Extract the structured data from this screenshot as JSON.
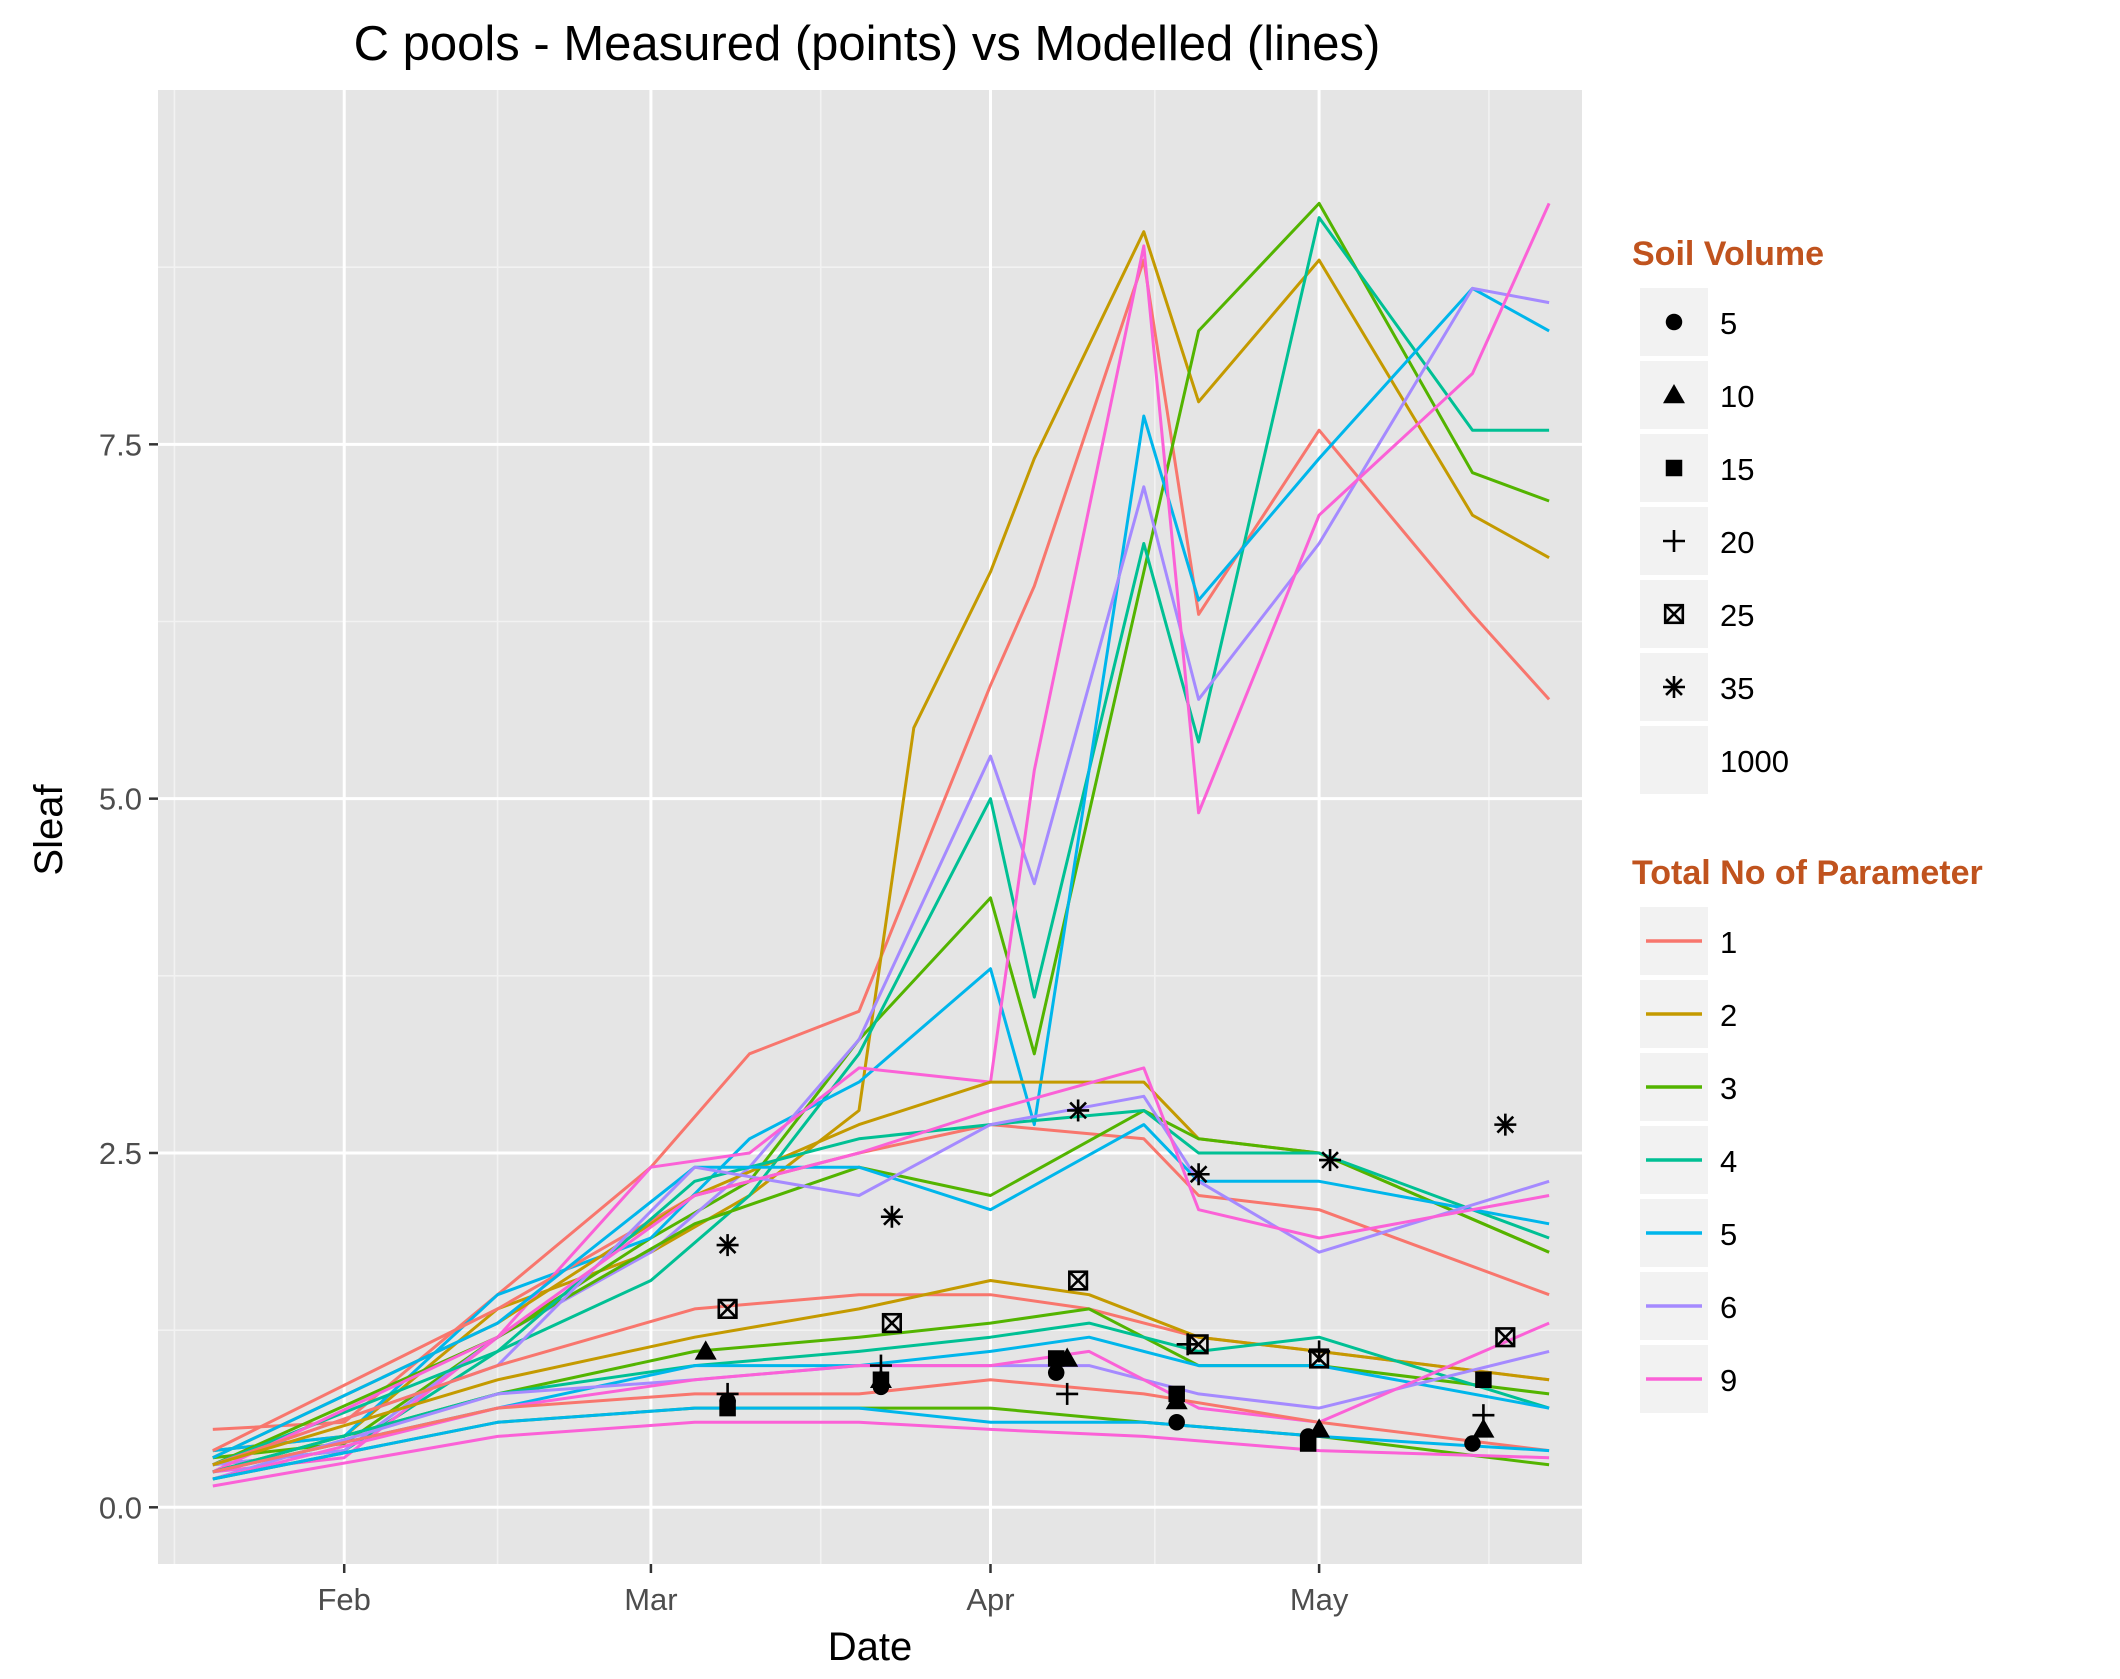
{
  "chart_data": {
    "type": "line",
    "title": "C pools - Measured (points) vs Modelled (lines)",
    "xlabel": "Date",
    "ylabel": "Sleaf",
    "x_ticks": [
      "Feb",
      "Mar",
      "Apr",
      "May"
    ],
    "y_ticks": [
      "0.0",
      "2.5",
      "5.0",
      "7.5"
    ],
    "xlim": [
      "2013-01-15",
      "2013-05-25"
    ],
    "ylim": [
      -0.4,
      10.0
    ],
    "grid": true,
    "legend_position": "right",
    "colors": {
      "panel_bg": "#e5e5e5",
      "grid_major": "#ffffff",
      "legend_title": "#c0531e"
    },
    "legend_shape": {
      "title": "Soil Volume",
      "items": [
        {
          "label": "5",
          "shape": "circle"
        },
        {
          "label": "10",
          "shape": "triangle"
        },
        {
          "label": "15",
          "shape": "square"
        },
        {
          "label": "20",
          "shape": "plus"
        },
        {
          "label": "25",
          "shape": "boxed-x"
        },
        {
          "label": "35",
          "shape": "asterisk"
        },
        {
          "label": "1000",
          "shape": "none"
        }
      ]
    },
    "legend_color": {
      "title": "Total No of Parameter",
      "items": [
        {
          "label": "1",
          "color": "#f8766d"
        },
        {
          "label": "2",
          "color": "#c49a00"
        },
        {
          "label": "3",
          "color": "#53b400"
        },
        {
          "label": "4",
          "color": "#00c094"
        },
        {
          "label": "5",
          "color": "#00b6eb"
        },
        {
          "label": "6",
          "color": "#a58aff"
        },
        {
          "label": "9",
          "color": "#fb61d7"
        }
      ]
    },
    "series": [
      {
        "group": "1",
        "color": "#f8766d",
        "x": [
          "2013-01-20",
          "2013-02-01",
          "2013-02-15",
          "2013-03-01",
          "2013-03-10",
          "2013-03-20",
          "2013-04-01",
          "2013-04-05",
          "2013-04-15",
          "2013-04-20",
          "2013-05-01",
          "2013-05-15",
          "2013-05-22"
        ],
        "y": [
          0.55,
          0.6,
          1.5,
          2.4,
          3.2,
          3.5,
          5.8,
          6.5,
          8.8,
          6.3,
          7.6,
          6.3,
          5.7
        ]
      },
      {
        "group": "2",
        "color": "#c49a00",
        "x": [
          "2013-01-20",
          "2013-02-01",
          "2013-02-15",
          "2013-03-01",
          "2013-03-10",
          "2013-03-20",
          "2013-03-25",
          "2013-04-01",
          "2013-04-05",
          "2013-04-15",
          "2013-04-20",
          "2013-05-01",
          "2013-05-15",
          "2013-05-22"
        ],
        "y": [
          0.4,
          0.5,
          1.4,
          1.8,
          2.2,
          2.8,
          5.5,
          6.6,
          7.4,
          9.0,
          7.8,
          8.8,
          7.0,
          6.7
        ]
      },
      {
        "group": "3",
        "color": "#53b400",
        "x": [
          "2013-01-20",
          "2013-02-01",
          "2013-02-15",
          "2013-03-01",
          "2013-03-10",
          "2013-03-20",
          "2013-04-01",
          "2013-04-05",
          "2013-04-15",
          "2013-04-20",
          "2013-05-01",
          "2013-05-15",
          "2013-05-22"
        ],
        "y": [
          0.35,
          0.45,
          1.2,
          1.9,
          2.3,
          3.3,
          4.3,
          3.2,
          6.6,
          8.3,
          9.2,
          7.3,
          7.1
        ]
      },
      {
        "group": "4",
        "color": "#00c094",
        "x": [
          "2013-01-20",
          "2013-02-01",
          "2013-02-15",
          "2013-03-01",
          "2013-03-10",
          "2013-03-20",
          "2013-04-01",
          "2013-04-05",
          "2013-04-15",
          "2013-04-20",
          "2013-05-01",
          "2013-05-15",
          "2013-05-22"
        ],
        "y": [
          0.3,
          0.4,
          1.1,
          1.6,
          2.2,
          3.2,
          5.0,
          3.6,
          6.8,
          5.4,
          9.1,
          7.6,
          7.6
        ]
      },
      {
        "group": "5",
        "color": "#00b6eb",
        "x": [
          "2013-01-20",
          "2013-02-01",
          "2013-02-15",
          "2013-03-01",
          "2013-03-10",
          "2013-03-20",
          "2013-04-01",
          "2013-04-05",
          "2013-04-15",
          "2013-04-20",
          "2013-05-01",
          "2013-05-15",
          "2013-05-22"
        ],
        "y": [
          0.4,
          0.5,
          1.5,
          1.9,
          2.6,
          3.0,
          3.8,
          2.7,
          7.7,
          6.4,
          7.4,
          8.6,
          8.3
        ]
      },
      {
        "group": "6",
        "color": "#a58aff",
        "x": [
          "2013-01-20",
          "2013-02-01",
          "2013-02-15",
          "2013-03-01",
          "2013-03-10",
          "2013-03-20",
          "2013-04-01",
          "2013-04-05",
          "2013-04-15",
          "2013-04-20",
          "2013-05-01",
          "2013-05-15",
          "2013-05-22"
        ],
        "y": [
          0.3,
          0.4,
          1.2,
          1.8,
          2.4,
          3.3,
          5.3,
          4.4,
          7.2,
          5.7,
          6.8,
          8.6,
          8.5
        ]
      },
      {
        "group": "9",
        "color": "#fb61d7",
        "x": [
          "2013-01-20",
          "2013-02-01",
          "2013-02-15",
          "2013-03-01",
          "2013-03-10",
          "2013-03-20",
          "2013-04-01",
          "2013-04-05",
          "2013-04-15",
          "2013-04-20",
          "2013-05-01",
          "2013-05-15",
          "2013-05-22"
        ],
        "y": [
          0.25,
          0.35,
          1.2,
          2.4,
          2.5,
          3.1,
          3.0,
          5.2,
          8.9,
          4.9,
          7.0,
          8.0,
          9.2
        ]
      },
      {
        "group": "1",
        "color": "#f8766d",
        "x": [
          "2013-01-20",
          "2013-02-15",
          "2013-03-05",
          "2013-03-20",
          "2013-04-01",
          "2013-04-15",
          "2013-04-20",
          "2013-05-01",
          "2013-05-22"
        ],
        "y": [
          0.4,
          1.4,
          2.2,
          2.5,
          2.7,
          2.6,
          2.2,
          2.1,
          1.5
        ]
      },
      {
        "group": "2",
        "color": "#c49a00",
        "x": [
          "2013-01-20",
          "2013-02-15",
          "2013-03-05",
          "2013-03-20",
          "2013-04-01",
          "2013-04-15",
          "2013-04-20",
          "2013-05-01",
          "2013-05-22"
        ],
        "y": [
          0.35,
          1.3,
          2.2,
          2.7,
          3.0,
          3.0,
          2.6,
          2.5,
          1.8
        ]
      },
      {
        "group": "3",
        "color": "#53b400",
        "x": [
          "2013-01-20",
          "2013-02-15",
          "2013-03-05",
          "2013-03-20",
          "2013-04-01",
          "2013-04-15",
          "2013-04-20",
          "2013-05-01",
          "2013-05-22"
        ],
        "y": [
          0.3,
          1.2,
          2.0,
          2.4,
          2.2,
          2.8,
          2.6,
          2.5,
          1.8
        ]
      },
      {
        "group": "4",
        "color": "#00c094",
        "x": [
          "2013-01-20",
          "2013-02-15",
          "2013-03-05",
          "2013-03-20",
          "2013-04-01",
          "2013-04-15",
          "2013-04-20",
          "2013-05-01",
          "2013-05-22"
        ],
        "y": [
          0.3,
          1.1,
          2.3,
          2.6,
          2.7,
          2.8,
          2.5,
          2.5,
          1.9
        ]
      },
      {
        "group": "5",
        "color": "#00b6eb",
        "x": [
          "2013-01-20",
          "2013-02-15",
          "2013-03-05",
          "2013-03-20",
          "2013-04-01",
          "2013-04-15",
          "2013-04-20",
          "2013-05-01",
          "2013-05-22"
        ],
        "y": [
          0.35,
          1.3,
          2.4,
          2.4,
          2.1,
          2.7,
          2.3,
          2.3,
          2.0
        ]
      },
      {
        "group": "6",
        "color": "#a58aff",
        "x": [
          "2013-01-20",
          "2013-02-15",
          "2013-03-05",
          "2013-03-20",
          "2013-04-01",
          "2013-04-15",
          "2013-04-20",
          "2013-05-01",
          "2013-05-22"
        ],
        "y": [
          0.3,
          1.0,
          2.4,
          2.2,
          2.7,
          2.9,
          2.3,
          1.8,
          2.3
        ]
      },
      {
        "group": "9",
        "color": "#fb61d7",
        "x": [
          "2013-01-20",
          "2013-02-15",
          "2013-03-05",
          "2013-03-20",
          "2013-04-01",
          "2013-04-15",
          "2013-04-20",
          "2013-05-01",
          "2013-05-22"
        ],
        "y": [
          0.25,
          1.2,
          2.2,
          2.5,
          2.8,
          3.1,
          2.1,
          1.9,
          2.2
        ]
      },
      {
        "group": "1",
        "color": "#f8766d",
        "x": [
          "2013-01-20",
          "2013-02-15",
          "2013-03-05",
          "2013-03-20",
          "2013-04-01",
          "2013-04-10",
          "2013-04-20",
          "2013-05-01",
          "2013-05-22"
        ],
        "y": [
          0.3,
          1.0,
          1.4,
          1.5,
          1.5,
          1.4,
          1.2,
          1.1,
          0.9
        ]
      },
      {
        "group": "2",
        "color": "#c49a00",
        "x": [
          "2013-01-20",
          "2013-02-15",
          "2013-03-05",
          "2013-03-20",
          "2013-04-01",
          "2013-04-10",
          "2013-04-20",
          "2013-05-01",
          "2013-05-22"
        ],
        "y": [
          0.3,
          0.9,
          1.2,
          1.4,
          1.6,
          1.5,
          1.2,
          1.1,
          0.9
        ]
      },
      {
        "group": "3",
        "color": "#53b400",
        "x": [
          "2013-01-20",
          "2013-02-15",
          "2013-03-05",
          "2013-03-20",
          "2013-04-01",
          "2013-04-10",
          "2013-04-20",
          "2013-05-01",
          "2013-05-22"
        ],
        "y": [
          0.25,
          0.8,
          1.1,
          1.2,
          1.3,
          1.4,
          1.0,
          1.0,
          0.8
        ]
      },
      {
        "group": "4",
        "color": "#00c094",
        "x": [
          "2013-01-20",
          "2013-02-15",
          "2013-03-05",
          "2013-03-20",
          "2013-04-01",
          "2013-04-10",
          "2013-04-20",
          "2013-05-01",
          "2013-05-22"
        ],
        "y": [
          0.25,
          0.8,
          1.0,
          1.1,
          1.2,
          1.3,
          1.1,
          1.2,
          0.7
        ]
      },
      {
        "group": "5",
        "color": "#00b6eb",
        "x": [
          "2013-01-20",
          "2013-02-15",
          "2013-03-05",
          "2013-03-20",
          "2013-04-01",
          "2013-04-10",
          "2013-04-20",
          "2013-05-01",
          "2013-05-22"
        ],
        "y": [
          0.25,
          0.7,
          1.0,
          1.0,
          1.1,
          1.2,
          1.0,
          1.0,
          0.7
        ]
      },
      {
        "group": "6",
        "color": "#a58aff",
        "x": [
          "2013-01-20",
          "2013-02-15",
          "2013-03-05",
          "2013-03-20",
          "2013-04-01",
          "2013-04-10",
          "2013-04-20",
          "2013-05-01",
          "2013-05-22"
        ],
        "y": [
          0.2,
          0.8,
          0.9,
          1.0,
          1.0,
          1.0,
          0.8,
          0.7,
          1.1
        ]
      },
      {
        "group": "9",
        "color": "#fb61d7",
        "x": [
          "2013-01-20",
          "2013-02-15",
          "2013-03-05",
          "2013-03-20",
          "2013-04-01",
          "2013-04-10",
          "2013-04-20",
          "2013-05-01",
          "2013-05-22"
        ],
        "y": [
          0.2,
          0.7,
          0.9,
          1.0,
          1.0,
          1.1,
          0.7,
          0.6,
          1.3
        ]
      },
      {
        "group": "1",
        "color": "#f8766d",
        "x": [
          "2013-01-20",
          "2013-02-15",
          "2013-03-05",
          "2013-03-20",
          "2013-04-01",
          "2013-04-15",
          "2013-05-01",
          "2013-05-22"
        ],
        "y": [
          0.25,
          0.7,
          0.8,
          0.8,
          0.9,
          0.8,
          0.6,
          0.4
        ]
      },
      {
        "group": "3",
        "color": "#53b400",
        "x": [
          "2013-01-20",
          "2013-02-15",
          "2013-03-05",
          "2013-03-20",
          "2013-04-01",
          "2013-04-15",
          "2013-05-01",
          "2013-05-22"
        ],
        "y": [
          0.2,
          0.6,
          0.7,
          0.7,
          0.7,
          0.6,
          0.5,
          0.3
        ]
      },
      {
        "group": "5",
        "color": "#00b6eb",
        "x": [
          "2013-01-20",
          "2013-02-15",
          "2013-03-05",
          "2013-03-20",
          "2013-04-01",
          "2013-04-15",
          "2013-05-01",
          "2013-05-22"
        ],
        "y": [
          0.2,
          0.6,
          0.7,
          0.7,
          0.6,
          0.6,
          0.5,
          0.4
        ]
      },
      {
        "group": "9",
        "color": "#fb61d7",
        "x": [
          "2013-01-20",
          "2013-02-15",
          "2013-03-05",
          "2013-03-20",
          "2013-04-01",
          "2013-04-15",
          "2013-05-01",
          "2013-05-22"
        ],
        "y": [
          0.15,
          0.5,
          0.6,
          0.6,
          0.55,
          0.5,
          0.4,
          0.35
        ]
      }
    ],
    "points": [
      {
        "shape": "circle",
        "x": [
          "2013-03-08",
          "2013-03-22",
          "2013-04-07",
          "2013-04-18",
          "2013-04-30",
          "2013-05-15"
        ],
        "y": [
          0.75,
          0.85,
          0.95,
          0.6,
          0.5,
          0.45
        ]
      },
      {
        "shape": "triangle",
        "x": [
          "2013-03-06",
          "2013-03-22",
          "2013-04-08",
          "2013-04-18",
          "2013-05-01",
          "2013-05-16"
        ],
        "y": [
          1.1,
          0.9,
          1.05,
          0.75,
          0.55,
          0.55
        ]
      },
      {
        "shape": "square",
        "x": [
          "2013-03-08",
          "2013-03-22",
          "2013-04-07",
          "2013-04-18",
          "2013-04-30",
          "2013-05-16"
        ],
        "y": [
          0.7,
          0.9,
          1.05,
          0.8,
          0.45,
          0.9
        ]
      },
      {
        "shape": "plus",
        "x": [
          "2013-03-08",
          "2013-03-22",
          "2013-04-08",
          "2013-04-19",
          "2013-05-01",
          "2013-05-16"
        ],
        "y": [
          0.8,
          1.0,
          0.8,
          1.15,
          1.1,
          0.65
        ]
      },
      {
        "shape": "boxed-x",
        "x": [
          "2013-03-08",
          "2013-03-23",
          "2013-04-09",
          "2013-04-20",
          "2013-05-01",
          "2013-05-18"
        ],
        "y": [
          1.4,
          1.3,
          1.6,
          1.15,
          1.05,
          1.2
        ]
      },
      {
        "shape": "asterisk",
        "x": [
          "2013-03-08",
          "2013-03-23",
          "2013-04-09",
          "2013-04-20",
          "2013-05-02",
          "2013-05-18"
        ],
        "y": [
          1.85,
          2.05,
          2.8,
          2.35,
          2.45,
          2.7
        ]
      }
    ]
  }
}
